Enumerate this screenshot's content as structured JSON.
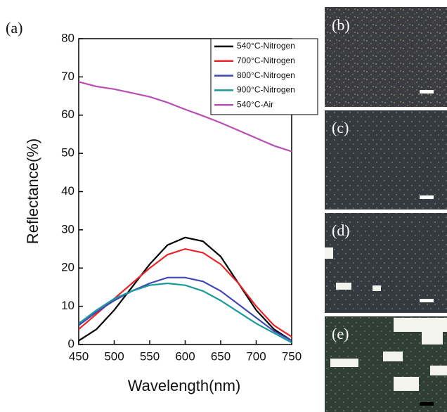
{
  "chart_data": {
    "type": "line",
    "x_label": "Wavelength(nm)",
    "y_label": "Reflectance(%)",
    "x": [
      450,
      475,
      500,
      525,
      550,
      575,
      600,
      625,
      650,
      675,
      700,
      725,
      750
    ],
    "series": [
      {
        "name": "540°C-Nitrogen",
        "color": "#000000",
        "values": [
          1,
          4,
          9,
          15,
          21,
          26,
          28,
          27,
          23,
          16,
          9,
          4,
          1
        ]
      },
      {
        "name": "700°C-Nitrogen",
        "color": "#e8252a",
        "values": [
          4,
          8,
          12,
          16,
          20,
          23.5,
          25,
          24,
          21,
          16,
          10,
          5,
          2
        ]
      },
      {
        "name": "800°C-Nitrogen",
        "color": "#3f48b4",
        "values": [
          5,
          8.5,
          11.5,
          14,
          16,
          17.5,
          17.5,
          16.5,
          14,
          10.5,
          7,
          3.5,
          1
        ]
      },
      {
        "name": "900°C-Nitrogen",
        "color": "#1a9a9a",
        "values": [
          5.5,
          9,
          12,
          14,
          15.5,
          16,
          15.5,
          14,
          11.5,
          8.5,
          5.5,
          3,
          0.5
        ]
      },
      {
        "name": "540°C-Air",
        "color": "#b84fb4",
        "values": [
          68.7,
          67.5,
          66.8,
          65.8,
          64.8,
          63.3,
          61.5,
          59.8,
          58,
          56,
          54,
          52,
          50.5
        ]
      }
    ],
    "xlim": [
      450,
      750
    ],
    "xticks": [
      450,
      500,
      550,
      600,
      650,
      700,
      750
    ],
    "ylim": [
      0,
      80
    ],
    "yticks": [
      0,
      10,
      20,
      30,
      40,
      50,
      60,
      70,
      80
    ],
    "legend": "upper right"
  },
  "panel_labels": [
    "(a)",
    "(b)",
    "(c)",
    "(d)",
    "(e)"
  ]
}
